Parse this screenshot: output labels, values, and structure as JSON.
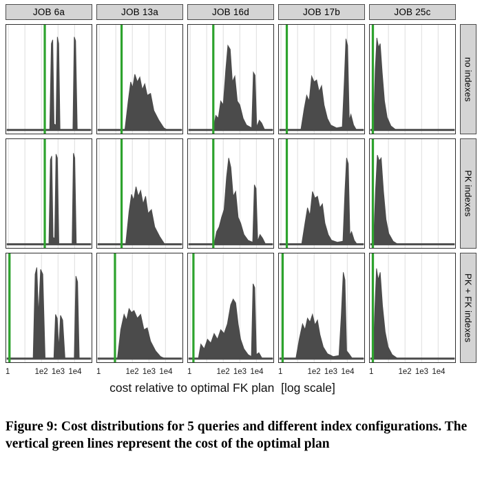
{
  "figure": {
    "axis_title": "cost relative to optimal FK plan  [log scale]",
    "caption": "Figure 9: Cost distributions for 5 queries and different index configurations.  The vertical green lines represent the cost of the optimal plan"
  },
  "colors": {
    "optimal_line_green": "#2da32d",
    "density_fill": "#4b4b4b",
    "strip_background": "#d4d4d4",
    "gridline": "#dddddd"
  },
  "chart_data": {
    "type": "area",
    "title": "Cost distributions for 5 queries and different index configurations",
    "description": "Faceted density plots (5 queries x 3 index configurations) of query plan costs relative to the optimal FK plan, on a log10 x-axis. Vertical green line in each panel marks the cost of the optimal plan.",
    "facet_columns": [
      "JOB 6a",
      "JOB 13a",
      "JOB 16d",
      "JOB 17b",
      "JOB 25c"
    ],
    "facet_rows": [
      "no indexes",
      "PK indexes",
      "PK + FK indexes"
    ],
    "x_axis": {
      "label": "cost relative to optimal FK plan [log scale]",
      "scale": "log10",
      "range_log10": [
        0,
        5
      ],
      "tick_values": [
        1,
        100,
        1000,
        10000
      ],
      "tick_labels": [
        "1",
        "1e2",
        "1e3",
        "1e4"
      ],
      "gridline_log10": [
        0,
        1,
        2,
        3,
        4
      ]
    },
    "panels": [
      {
        "row": "no indexes",
        "column": "JOB 6a",
        "optimal_plan_log10": 2.2,
        "density_log10_height": [
          [
            0,
            0
          ],
          [
            2.5,
            0
          ],
          [
            2.6,
            0.9
          ],
          [
            2.68,
            0.94
          ],
          [
            2.76,
            0.06
          ],
          [
            2.88,
            0.05
          ],
          [
            2.96,
            0.97
          ],
          [
            3.04,
            0.9
          ],
          [
            3.12,
            0
          ],
          [
            3.9,
            0
          ],
          [
            3.98,
            0.97
          ],
          [
            4.06,
            0.93
          ],
          [
            4.16,
            0
          ],
          [
            5,
            0
          ]
        ]
      },
      {
        "row": "no indexes",
        "column": "JOB 13a",
        "optimal_plan_log10": 1.35,
        "density_log10_height": [
          [
            0,
            0
          ],
          [
            1.55,
            0
          ],
          [
            1.75,
            0.3
          ],
          [
            1.9,
            0.5
          ],
          [
            2.02,
            0.44
          ],
          [
            2.15,
            0.58
          ],
          [
            2.3,
            0.5
          ],
          [
            2.45,
            0.55
          ],
          [
            2.6,
            0.42
          ],
          [
            2.75,
            0.48
          ],
          [
            2.9,
            0.36
          ],
          [
            3.1,
            0.38
          ],
          [
            3.3,
            0.2
          ],
          [
            3.6,
            0.1
          ],
          [
            3.9,
            0.02
          ],
          [
            4.1,
            0
          ],
          [
            5,
            0
          ]
        ]
      },
      {
        "row": "no indexes",
        "column": "JOB 16d",
        "optimal_plan_log10": 1.4,
        "density_log10_height": [
          [
            0,
            0
          ],
          [
            1.4,
            0
          ],
          [
            1.55,
            0.15
          ],
          [
            1.7,
            0.12
          ],
          [
            1.85,
            0.3
          ],
          [
            2.0,
            0.26
          ],
          [
            2.15,
            0.62
          ],
          [
            2.28,
            0.88
          ],
          [
            2.42,
            0.84
          ],
          [
            2.55,
            0.5
          ],
          [
            2.7,
            0.56
          ],
          [
            2.85,
            0.3
          ],
          [
            3.0,
            0.26
          ],
          [
            3.2,
            0.12
          ],
          [
            3.4,
            0.05
          ],
          [
            3.72,
            0.02
          ],
          [
            3.82,
            0.6
          ],
          [
            3.92,
            0.57
          ],
          [
            4.02,
            0.03
          ],
          [
            4.18,
            0.1
          ],
          [
            4.32,
            0.07
          ],
          [
            4.5,
            0
          ],
          [
            5,
            0
          ]
        ]
      },
      {
        "row": "no indexes",
        "column": "JOB 17b",
        "optimal_plan_log10": 0.35,
        "density_log10_height": [
          [
            0,
            0
          ],
          [
            1.2,
            0
          ],
          [
            1.4,
            0.22
          ],
          [
            1.55,
            0.36
          ],
          [
            1.7,
            0.3
          ],
          [
            1.85,
            0.56
          ],
          [
            2.0,
            0.5
          ],
          [
            2.15,
            0.52
          ],
          [
            2.3,
            0.4
          ],
          [
            2.45,
            0.46
          ],
          [
            2.6,
            0.26
          ],
          [
            2.8,
            0.12
          ],
          [
            3.0,
            0.05
          ],
          [
            3.35,
            0.02
          ],
          [
            3.7,
            0.03
          ],
          [
            3.82,
            0.5
          ],
          [
            3.92,
            0.95
          ],
          [
            4.02,
            0.88
          ],
          [
            4.12,
            0.1
          ],
          [
            4.22,
            0.16
          ],
          [
            4.38,
            0.05
          ],
          [
            4.55,
            0
          ],
          [
            5,
            0
          ]
        ]
      },
      {
        "row": "no indexes",
        "column": "JOB 25c",
        "optimal_plan_log10": 0.06,
        "density_log10_height": [
          [
            0,
            0
          ],
          [
            0.1,
            0
          ],
          [
            0.2,
            0.62
          ],
          [
            0.3,
            0.96
          ],
          [
            0.4,
            0.86
          ],
          [
            0.5,
            0.9
          ],
          [
            0.62,
            0.6
          ],
          [
            0.76,
            0.3
          ],
          [
            0.92,
            0.13
          ],
          [
            1.15,
            0.04
          ],
          [
            1.45,
            0
          ],
          [
            5,
            0
          ]
        ]
      },
      {
        "row": "PK indexes",
        "column": "JOB 6a",
        "optimal_plan_log10": 2.2,
        "density_log10_height": [
          [
            0,
            0
          ],
          [
            2.45,
            0
          ],
          [
            2.54,
            0.88
          ],
          [
            2.62,
            0.92
          ],
          [
            2.7,
            0.07
          ],
          [
            2.8,
            0.06
          ],
          [
            2.88,
            0.94
          ],
          [
            2.96,
            0.9
          ],
          [
            3.05,
            0
          ],
          [
            3.85,
            0
          ],
          [
            3.93,
            0.95
          ],
          [
            4.01,
            0.9
          ],
          [
            4.1,
            0
          ],
          [
            5,
            0
          ]
        ]
      },
      {
        "row": "PK indexes",
        "column": "JOB 13a",
        "optimal_plan_log10": 1.35,
        "density_log10_height": [
          [
            0,
            0
          ],
          [
            1.6,
            0
          ],
          [
            1.8,
            0.34
          ],
          [
            1.95,
            0.52
          ],
          [
            2.08,
            0.46
          ],
          [
            2.22,
            0.6
          ],
          [
            2.36,
            0.5
          ],
          [
            2.5,
            0.56
          ],
          [
            2.65,
            0.42
          ],
          [
            2.8,
            0.5
          ],
          [
            2.95,
            0.32
          ],
          [
            3.15,
            0.36
          ],
          [
            3.35,
            0.18
          ],
          [
            3.65,
            0.08
          ],
          [
            3.95,
            0
          ],
          [
            5,
            0
          ]
        ]
      },
      {
        "row": "PK indexes",
        "column": "JOB 16d",
        "optimal_plan_log10": 1.4,
        "density_log10_height": [
          [
            0,
            0
          ],
          [
            1.45,
            0
          ],
          [
            1.6,
            0.13
          ],
          [
            1.75,
            0.18
          ],
          [
            1.9,
            0.28
          ],
          [
            2.05,
            0.36
          ],
          [
            2.2,
            0.7
          ],
          [
            2.33,
            0.9
          ],
          [
            2.46,
            0.8
          ],
          [
            2.6,
            0.5
          ],
          [
            2.75,
            0.55
          ],
          [
            2.9,
            0.28
          ],
          [
            3.05,
            0.22
          ],
          [
            3.25,
            0.1
          ],
          [
            3.5,
            0.04
          ],
          [
            3.78,
            0.02
          ],
          [
            3.88,
            0.62
          ],
          [
            3.98,
            0.58
          ],
          [
            4.08,
            0.03
          ],
          [
            4.22,
            0.1
          ],
          [
            4.38,
            0.06
          ],
          [
            4.55,
            0
          ],
          [
            5,
            0
          ]
        ]
      },
      {
        "row": "PK indexes",
        "column": "JOB 17b",
        "optimal_plan_log10": 0.35,
        "density_log10_height": [
          [
            0,
            0
          ],
          [
            1.25,
            0
          ],
          [
            1.45,
            0.22
          ],
          [
            1.6,
            0.38
          ],
          [
            1.75,
            0.3
          ],
          [
            1.9,
            0.55
          ],
          [
            2.05,
            0.48
          ],
          [
            2.2,
            0.5
          ],
          [
            2.35,
            0.38
          ],
          [
            2.5,
            0.42
          ],
          [
            2.65,
            0.22
          ],
          [
            2.85,
            0.1
          ],
          [
            3.05,
            0.04
          ],
          [
            3.4,
            0.02
          ],
          [
            3.74,
            0.03
          ],
          [
            3.86,
            0.55
          ],
          [
            3.96,
            0.9
          ],
          [
            4.06,
            0.84
          ],
          [
            4.16,
            0.09
          ],
          [
            4.26,
            0.13
          ],
          [
            4.42,
            0.04
          ],
          [
            4.58,
            0
          ],
          [
            5,
            0
          ]
        ]
      },
      {
        "row": "PK indexes",
        "column": "JOB 25c",
        "optimal_plan_log10": 0.06,
        "density_log10_height": [
          [
            0,
            0
          ],
          [
            0.1,
            0
          ],
          [
            0.22,
            0.56
          ],
          [
            0.33,
            0.93
          ],
          [
            0.44,
            0.87
          ],
          [
            0.56,
            0.9
          ],
          [
            0.7,
            0.55
          ],
          [
            0.85,
            0.26
          ],
          [
            1.02,
            0.11
          ],
          [
            1.28,
            0.03
          ],
          [
            1.55,
            0
          ],
          [
            5,
            0
          ]
        ]
      },
      {
        "row": "PK + FK indexes",
        "column": "JOB 6a",
        "optimal_plan_log10": 0.07,
        "density_log10_height": [
          [
            0,
            0
          ],
          [
            1.5,
            0
          ],
          [
            1.62,
            0.88
          ],
          [
            1.72,
            0.95
          ],
          [
            1.82,
            0.45
          ],
          [
            1.95,
            0.93
          ],
          [
            2.08,
            0.88
          ],
          [
            2.22,
            0
          ],
          [
            2.75,
            0
          ],
          [
            2.85,
            0.46
          ],
          [
            2.95,
            0.42
          ],
          [
            3.05,
            0.1
          ],
          [
            3.15,
            0.45
          ],
          [
            3.28,
            0.4
          ],
          [
            3.42,
            0
          ],
          [
            3.98,
            0
          ],
          [
            4.08,
            0.86
          ],
          [
            4.18,
            0.8
          ],
          [
            4.28,
            0
          ],
          [
            5,
            0
          ]
        ]
      },
      {
        "row": "PK + FK indexes",
        "column": "JOB 13a",
        "optimal_plan_log10": 0.95,
        "density_log10_height": [
          [
            0,
            0
          ],
          [
            1.1,
            0
          ],
          [
            1.3,
            0.3
          ],
          [
            1.5,
            0.46
          ],
          [
            1.65,
            0.4
          ],
          [
            1.8,
            0.52
          ],
          [
            1.95,
            0.48
          ],
          [
            2.1,
            0.5
          ],
          [
            2.3,
            0.42
          ],
          [
            2.5,
            0.46
          ],
          [
            2.7,
            0.3
          ],
          [
            2.9,
            0.32
          ],
          [
            3.1,
            0.18
          ],
          [
            3.4,
            0.08
          ],
          [
            3.7,
            0.02
          ],
          [
            3.95,
            0
          ],
          [
            5,
            0
          ]
        ]
      },
      {
        "row": "PK + FK indexes",
        "column": "JOB 16d",
        "optimal_plan_log10": 0.2,
        "density_log10_height": [
          [
            0,
            0
          ],
          [
            0.5,
            0
          ],
          [
            0.65,
            0.15
          ],
          [
            0.85,
            0.1
          ],
          [
            1.05,
            0.2
          ],
          [
            1.25,
            0.16
          ],
          [
            1.45,
            0.26
          ],
          [
            1.65,
            0.2
          ],
          [
            1.85,
            0.3
          ],
          [
            2.05,
            0.26
          ],
          [
            2.25,
            0.36
          ],
          [
            2.45,
            0.56
          ],
          [
            2.6,
            0.62
          ],
          [
            2.75,
            0.58
          ],
          [
            2.9,
            0.36
          ],
          [
            3.05,
            0.2
          ],
          [
            3.25,
            0.1
          ],
          [
            3.5,
            0.04
          ],
          [
            3.7,
            0.02
          ],
          [
            3.8,
            0.78
          ],
          [
            3.9,
            0.74
          ],
          [
            4.0,
            0.04
          ],
          [
            4.15,
            0.06
          ],
          [
            4.35,
            0
          ],
          [
            5,
            0
          ]
        ]
      },
      {
        "row": "PK + FK indexes",
        "column": "JOB 17b",
        "optimal_plan_log10": 0.1,
        "density_log10_height": [
          [
            0,
            0
          ],
          [
            0.9,
            0
          ],
          [
            1.1,
            0.2
          ],
          [
            1.3,
            0.36
          ],
          [
            1.45,
            0.3
          ],
          [
            1.6,
            0.42
          ],
          [
            1.75,
            0.38
          ],
          [
            1.9,
            0.46
          ],
          [
            2.05,
            0.35
          ],
          [
            2.2,
            0.4
          ],
          [
            2.35,
            0.25
          ],
          [
            2.55,
            0.12
          ],
          [
            2.8,
            0.05
          ],
          [
            3.15,
            0.02
          ],
          [
            3.5,
            0.03
          ],
          [
            3.64,
            0.45
          ],
          [
            3.76,
            0.9
          ],
          [
            3.86,
            0.82
          ],
          [
            3.96,
            0.08
          ],
          [
            4.1,
            0.05
          ],
          [
            4.3,
            0
          ],
          [
            5,
            0
          ]
        ]
      },
      {
        "row": "PK + FK indexes",
        "column": "JOB 25c",
        "optimal_plan_log10": 0.06,
        "density_log10_height": [
          [
            0,
            0
          ],
          [
            0.08,
            0
          ],
          [
            0.18,
            0.52
          ],
          [
            0.28,
            0.94
          ],
          [
            0.38,
            0.82
          ],
          [
            0.5,
            0.9
          ],
          [
            0.64,
            0.55
          ],
          [
            0.8,
            0.28
          ],
          [
            0.98,
            0.12
          ],
          [
            1.22,
            0.04
          ],
          [
            1.55,
            0
          ],
          [
            5,
            0
          ]
        ]
      }
    ]
  }
}
